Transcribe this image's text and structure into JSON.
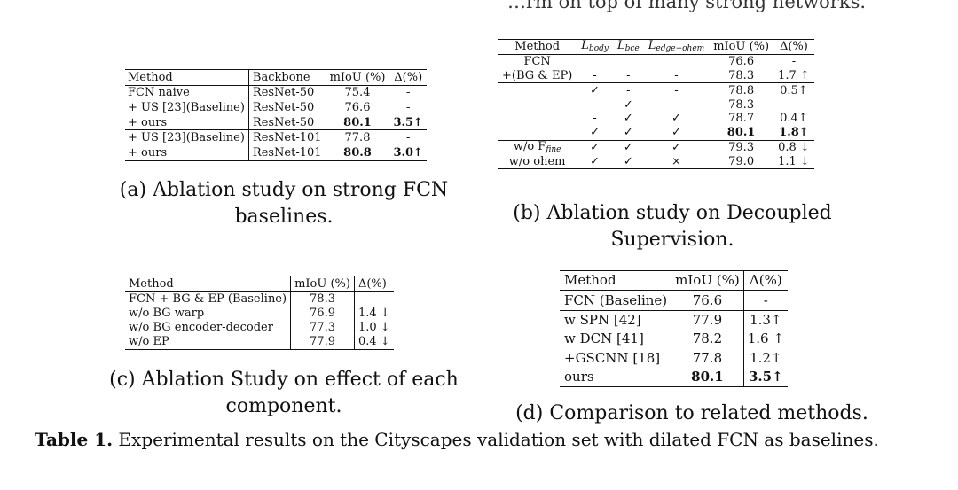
{
  "top_cut_text": "…rm on top of many strong networks.",
  "table_a": {
    "header": [
      "Method",
      "Backbone",
      "mIoU (%)",
      "Δ(%)"
    ],
    "rows": [
      [
        "FCN naive",
        "ResNet-50",
        "75.4",
        "-"
      ],
      [
        "+ US [23](Baseline)",
        "ResNet-50",
        "76.6",
        "-"
      ],
      [
        "+ ours",
        "ResNet-50",
        "80.1",
        "3.5↑"
      ],
      [
        "+ US [23](Baseline)",
        "ResNet-101",
        "77.8",
        "-"
      ],
      [
        "+ ours",
        "ResNet-101",
        "80.8",
        "3.0↑"
      ]
    ],
    "caption": "(a) Ablation study on strong FCN baselines."
  },
  "table_b": {
    "header": [
      "Method",
      "L",
      "body",
      "L",
      "bce",
      "L",
      "edge−ohem",
      "mIoU (%)",
      "Δ(%)"
    ],
    "rows": [
      [
        "FCN",
        "",
        "",
        "",
        "76.6",
        "-"
      ],
      [
        "+(BG & EP)",
        "-",
        "-",
        "-",
        "78.3",
        "1.7 ↑"
      ],
      [
        "",
        "✓",
        "-",
        "-",
        "78.8",
        "0.5↑"
      ],
      [
        "",
        "-",
        "✓",
        "-",
        "78.3",
        "-"
      ],
      [
        "",
        "-",
        "✓",
        "✓",
        "78.7",
        "0.4↑"
      ],
      [
        "",
        "✓",
        "✓",
        "✓",
        "80.1",
        "1.8↑"
      ],
      [
        "w/o F",
        "✓",
        "✓",
        "✓",
        "79.3",
        "0.8 ↓"
      ],
      [
        "w/o ohem",
        "✓",
        "✓",
        "×",
        "79.0",
        "1.1 ↓"
      ]
    ],
    "fine_sub": "fine",
    "caption": "(b) Ablation study on Decoupled Supervision."
  },
  "table_c": {
    "header": [
      "Method",
      "mIoU (%)",
      "Δ(%)"
    ],
    "rows": [
      [
        "FCN + BG & EP (Baseline)",
        "78.3",
        "-"
      ],
      [
        "w/o BG warp",
        "76.9",
        "1.4 ↓"
      ],
      [
        "w/o BG encoder-decoder",
        "77.3",
        "1.0 ↓"
      ],
      [
        "w/o EP",
        "77.9",
        "0.4 ↓"
      ]
    ],
    "caption": "(c) Ablation Study on effect of each component."
  },
  "table_d": {
    "header": [
      "Method",
      "mIoU (%)",
      "Δ(%)"
    ],
    "rows": [
      [
        "FCN (Baseline)",
        "76.6",
        "-"
      ],
      [
        "w SPN [42]",
        "77.9",
        "1.3↑"
      ],
      [
        "w DCN [41]",
        "78.2",
        "1.6 ↑"
      ],
      [
        "+GSCNN [18]",
        "77.8",
        "1.2↑"
      ],
      [
        "ours",
        "80.1",
        "3.5↑"
      ]
    ],
    "caption": "(d) Comparison to related methods."
  },
  "main_caption": {
    "label": "Table 1.",
    "text": " Experimental results on the Cityscapes validation set with dilated FCN as baselines."
  }
}
